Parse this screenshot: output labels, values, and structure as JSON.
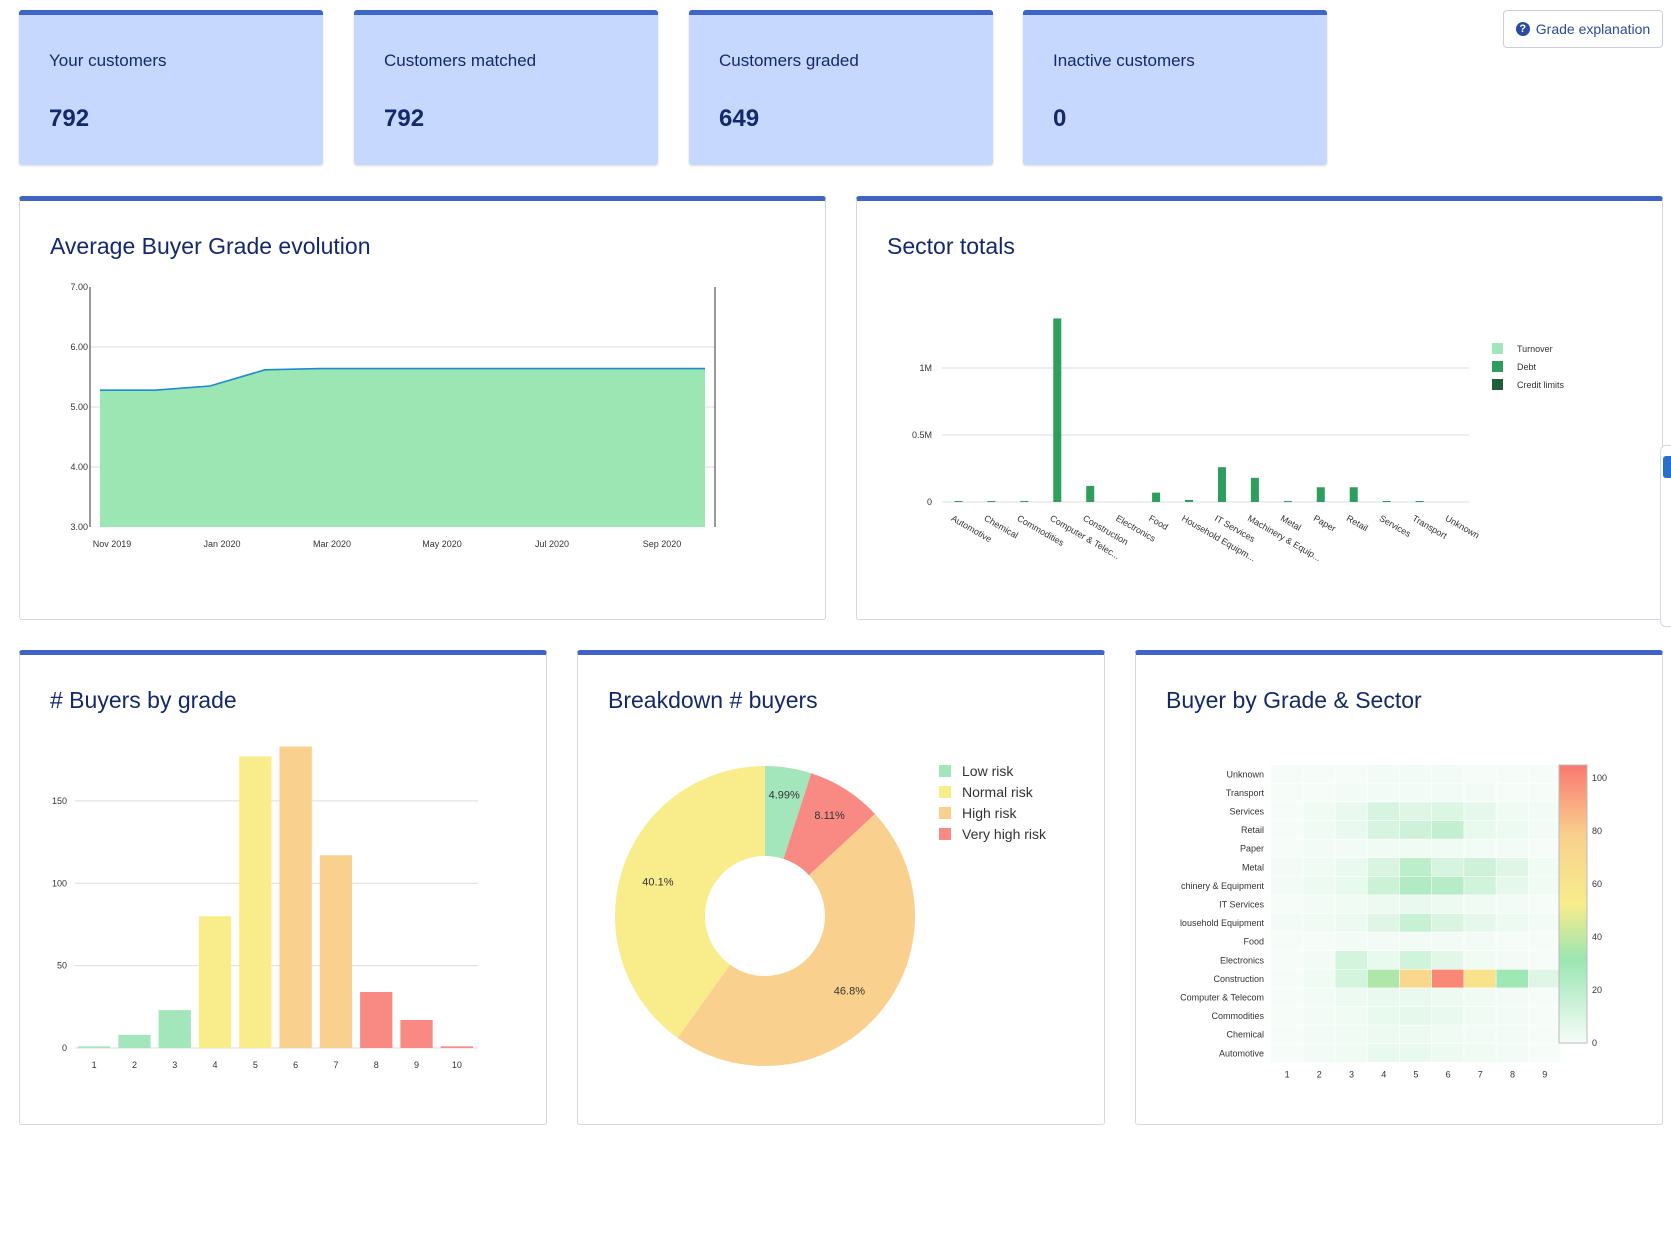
{
  "kpis": [
    {
      "label": "Your customers",
      "value": "792"
    },
    {
      "label": "Customers matched",
      "value": "792"
    },
    {
      "label": "Customers graded",
      "value": "649"
    },
    {
      "label": "Inactive customers",
      "value": "0"
    }
  ],
  "grade_button": {
    "label": "Grade explanation",
    "icon": "question-circle-icon"
  },
  "panels": {
    "evolution": {
      "title": "Average Buyer Grade evolution"
    },
    "sector": {
      "title": "Sector totals"
    },
    "buyers": {
      "title": "# Buyers by grade"
    },
    "breakdown": {
      "title": "Breakdown # buyers"
    },
    "heatmap": {
      "title": "Buyer by Grade & Sector"
    }
  },
  "colors": {
    "brand": "#3e64c5",
    "kpi_bg": "#c6d8fd",
    "title": "#13296b",
    "area_fill": "#9ce6b4",
    "area_line": "#1a8bd6",
    "turnover": "#a4e6bc",
    "debt": "#2e9e5e",
    "credit_limits": "#1f5e3c",
    "low": "#a4e6bc",
    "normal": "#f8ec8b",
    "high": "#f9d08e",
    "very_high": "#f98a83"
  },
  "chart_data": [
    {
      "id": "evolution",
      "type": "area",
      "x": [
        "Nov 2019",
        "Dec 2019",
        "Jan 2020",
        "Feb 2020",
        "Mar 2020",
        "Apr 2020",
        "May 2020",
        "Jun 2020",
        "Jul 2020",
        "Aug 2020",
        "Sep 2020",
        "Oct 2020"
      ],
      "x_ticks": [
        "Nov 2019",
        "Jan 2020",
        "Mar 2020",
        "May 2020",
        "Jul 2020",
        "Sep 2020"
      ],
      "values": [
        5.28,
        5.28,
        5.35,
        5.62,
        5.64,
        5.64,
        5.64,
        5.64,
        5.64,
        5.64,
        5.64,
        5.64
      ],
      "ylim": [
        3,
        7
      ],
      "y_ticks": [
        "3.00",
        "4.00",
        "5.00",
        "6.00",
        "7.00"
      ],
      "grid": true
    },
    {
      "id": "sector",
      "type": "bar",
      "categories": [
        "Automotive",
        "Chemical",
        "Commodities",
        "Computer & Telec...",
        "Construction",
        "Electronics",
        "Food",
        "Household Equipm...",
        "IT Services",
        "Machinery & Equip...",
        "Metal",
        "Paper",
        "Retail",
        "Services",
        "Transport",
        "Unknown"
      ],
      "series": [
        {
          "name": "Turnover",
          "values": [
            0,
            0,
            0,
            0,
            0,
            0,
            0,
            0,
            0,
            0,
            0,
            0,
            0,
            0,
            0,
            0
          ]
        },
        {
          "name": "Debt",
          "values": [
            2000,
            3000,
            3000,
            1370000,
            120000,
            0,
            70000,
            15000,
            260000,
            180000,
            5000,
            110000,
            110000,
            3000,
            3000,
            0
          ]
        },
        {
          "name": "Credit limits",
          "values": [
            0,
            0,
            0,
            0,
            0,
            0,
            0,
            0,
            0,
            0,
            0,
            0,
            0,
            0,
            0,
            0
          ]
        }
      ],
      "ylim": [
        0,
        1500000
      ],
      "y_ticks": [
        {
          "v": 0,
          "label": "0"
        },
        {
          "v": 500000,
          "label": "0.5M"
        },
        {
          "v": 1000000,
          "label": "1M"
        }
      ],
      "legend_position": "top-right",
      "grid": true
    },
    {
      "id": "buyers",
      "type": "bar",
      "categories": [
        "1",
        "2",
        "3",
        "4",
        "5",
        "6",
        "7",
        "8",
        "9",
        "10"
      ],
      "values": [
        1,
        8,
        23,
        80,
        177,
        183,
        117,
        34,
        17,
        1
      ],
      "colors": [
        "#a4e6bc",
        "#a4e6bc",
        "#a4e6bc",
        "#f8ec8b",
        "#f8ec8b",
        "#f9d08e",
        "#f9d08e",
        "#f98a83",
        "#f98a83",
        "#f98a83"
      ],
      "ylim": [
        0,
        190
      ],
      "y_ticks": [
        0,
        50,
        100,
        150
      ],
      "grid": true
    },
    {
      "id": "breakdown",
      "type": "pie",
      "labels": [
        "Low risk",
        "Very high risk",
        "High risk",
        "Normal risk"
      ],
      "values": [
        4.99,
        8.11,
        46.8,
        40.1
      ],
      "value_labels": [
        "4.99%",
        "8.11%",
        "46.8%",
        "40.1%"
      ],
      "colors": [
        "#a4e6bc",
        "#f98a83",
        "#f9d08e",
        "#f8ec8b"
      ],
      "legend": [
        "Low risk",
        "Normal risk",
        "High risk",
        "Very high risk"
      ],
      "legend_colors": [
        "#a4e6bc",
        "#f8ec8b",
        "#f9d08e",
        "#f98a83"
      ],
      "hole": 0.4
    },
    {
      "id": "heatmap",
      "type": "heatmap",
      "x": [
        "1",
        "2",
        "3",
        "4",
        "5",
        "6",
        "7",
        "8",
        "9"
      ],
      "y": [
        "Automotive",
        "Chemical",
        "Commodities",
        "Computer & Telecom",
        "Construction",
        "Electronics",
        "Food",
        "Household Equipment",
        "IT Services",
        "Machinery & Equipment",
        "Metal",
        "Paper",
        "Retail",
        "Services",
        "Transport",
        "Unknown"
      ],
      "y_display": [
        "Automotive",
        "Chemical",
        "Commodities",
        "Computer & Telecom",
        "Construction",
        "Electronics",
        "Food",
        "lousehold Equipment",
        "IT Services",
        "chinery & Equipment",
        "Metal",
        "Paper",
        "Retail",
        "Services",
        "Transport",
        "Unknown"
      ],
      "z": [
        [
          0,
          1,
          2,
          4,
          4,
          3,
          2,
          1,
          0
        ],
        [
          0,
          1,
          2,
          3,
          3,
          2,
          1,
          1,
          0
        ],
        [
          0,
          1,
          2,
          5,
          6,
          4,
          2,
          1,
          0
        ],
        [
          0,
          1,
          3,
          4,
          4,
          3,
          2,
          1,
          0
        ],
        [
          0,
          2,
          12,
          36,
          72,
          100,
          62,
          30,
          8
        ],
        [
          0,
          1,
          12,
          5,
          13,
          7,
          2,
          1,
          0
        ],
        [
          0,
          0,
          1,
          1,
          1,
          1,
          1,
          0,
          0
        ],
        [
          1,
          2,
          3,
          8,
          16,
          10,
          6,
          3,
          1
        ],
        [
          0,
          1,
          2,
          3,
          4,
          3,
          2,
          1,
          0
        ],
        [
          1,
          3,
          5,
          15,
          24,
          22,
          13,
          6,
          2
        ],
        [
          1,
          2,
          4,
          10,
          20,
          11,
          14,
          8,
          2
        ],
        [
          0,
          1,
          1,
          2,
          2,
          2,
          1,
          1,
          0
        ],
        [
          0,
          2,
          4,
          11,
          14,
          18,
          5,
          3,
          1
        ],
        [
          0,
          2,
          4,
          11,
          8,
          9,
          6,
          2,
          1
        ],
        [
          0,
          0,
          1,
          1,
          1,
          1,
          1,
          0,
          0
        ],
        [
          0,
          0,
          0,
          1,
          1,
          1,
          0,
          0,
          0
        ]
      ],
      "zlim": [
        0,
        105
      ],
      "colorbar_ticks": [
        0,
        20,
        40,
        60,
        80,
        100
      ]
    }
  ]
}
